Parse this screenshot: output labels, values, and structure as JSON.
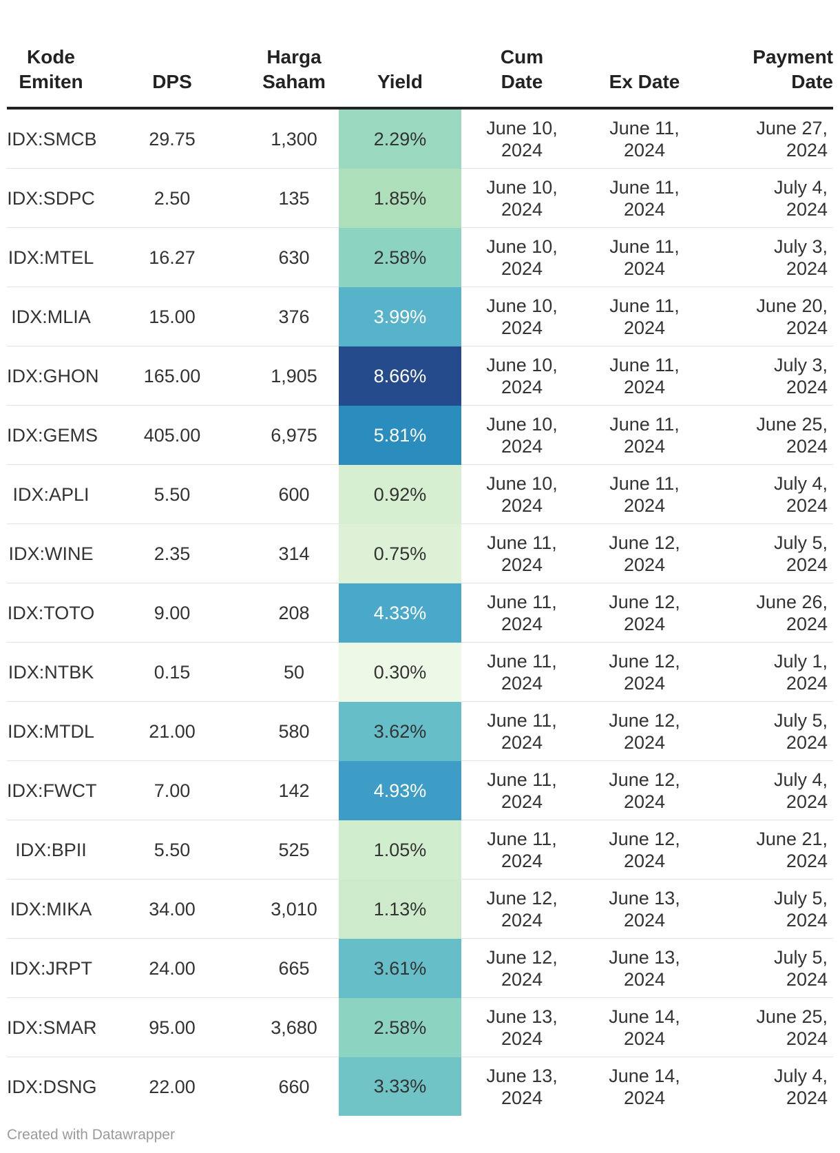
{
  "chart_data": {
    "type": "table",
    "columns": [
      "Kode\nEmiten",
      "DPS",
      "Harga\nSaham",
      "Yield",
      "Cum\nDate",
      "Ex Date",
      "Payment\nDate"
    ],
    "rows": [
      {
        "code": "IDX:SMCB",
        "dps": "29.75",
        "price": "1,300",
        "yield": "2.29%",
        "yield_value": 2.29,
        "cum": "June 10,\n2024",
        "ex": "June 11,\n2024",
        "pay": "June 27,\n2024"
      },
      {
        "code": "IDX:SDPC",
        "dps": "2.50",
        "price": "135",
        "yield": "1.85%",
        "yield_value": 1.85,
        "cum": "June 10,\n2024",
        "ex": "June 11,\n2024",
        "pay": "July 4,\n2024"
      },
      {
        "code": "IDX:MTEL",
        "dps": "16.27",
        "price": "630",
        "yield": "2.58%",
        "yield_value": 2.58,
        "cum": "June 10,\n2024",
        "ex": "June 11,\n2024",
        "pay": "July 3,\n2024"
      },
      {
        "code": "IDX:MLIA",
        "dps": "15.00",
        "price": "376",
        "yield": "3.99%",
        "yield_value": 3.99,
        "cum": "June 10,\n2024",
        "ex": "June 11,\n2024",
        "pay": "June 20,\n2024"
      },
      {
        "code": "IDX:GHON",
        "dps": "165.00",
        "price": "1,905",
        "yield": "8.66%",
        "yield_value": 8.66,
        "cum": "June 10,\n2024",
        "ex": "June 11,\n2024",
        "pay": "July 3,\n2024"
      },
      {
        "code": "IDX:GEMS",
        "dps": "405.00",
        "price": "6,975",
        "yield": "5.81%",
        "yield_value": 5.81,
        "cum": "June 10,\n2024",
        "ex": "June 11,\n2024",
        "pay": "June 25,\n2024"
      },
      {
        "code": "IDX:APLI",
        "dps": "5.50",
        "price": "600",
        "yield": "0.92%",
        "yield_value": 0.92,
        "cum": "June 10,\n2024",
        "ex": "June 11,\n2024",
        "pay": "July 4,\n2024"
      },
      {
        "code": "IDX:WINE",
        "dps": "2.35",
        "price": "314",
        "yield": "0.75%",
        "yield_value": 0.75,
        "cum": "June 11,\n2024",
        "ex": "June 12,\n2024",
        "pay": "July 5,\n2024"
      },
      {
        "code": "IDX:TOTO",
        "dps": "9.00",
        "price": "208",
        "yield": "4.33%",
        "yield_value": 4.33,
        "cum": "June 11,\n2024",
        "ex": "June 12,\n2024",
        "pay": "June 26,\n2024"
      },
      {
        "code": "IDX:NTBK",
        "dps": "0.15",
        "price": "50",
        "yield": "0.30%",
        "yield_value": 0.3,
        "cum": "June 11,\n2024",
        "ex": "June 12,\n2024",
        "pay": "July 1,\n2024"
      },
      {
        "code": "IDX:MTDL",
        "dps": "21.00",
        "price": "580",
        "yield": "3.62%",
        "yield_value": 3.62,
        "cum": "June 11,\n2024",
        "ex": "June 12,\n2024",
        "pay": "July 5,\n2024"
      },
      {
        "code": "IDX:FWCT",
        "dps": "7.00",
        "price": "142",
        "yield": "4.93%",
        "yield_value": 4.93,
        "cum": "June 11,\n2024",
        "ex": "June 12,\n2024",
        "pay": "July 4,\n2024"
      },
      {
        "code": "IDX:BPII",
        "dps": "5.50",
        "price": "525",
        "yield": "1.05%",
        "yield_value": 1.05,
        "cum": "June 11,\n2024",
        "ex": "June 12,\n2024",
        "pay": "June 21,\n2024"
      },
      {
        "code": "IDX:MIKA",
        "dps": "34.00",
        "price": "3,010",
        "yield": "1.13%",
        "yield_value": 1.13,
        "cum": "June 12,\n2024",
        "ex": "June 13,\n2024",
        "pay": "July 5,\n2024"
      },
      {
        "code": "IDX:JRPT",
        "dps": "24.00",
        "price": "665",
        "yield": "3.61%",
        "yield_value": 3.61,
        "cum": "June 12,\n2024",
        "ex": "June 13,\n2024",
        "pay": "July 5,\n2024"
      },
      {
        "code": "IDX:SMAR",
        "dps": "95.00",
        "price": "3,680",
        "yield": "2.58%",
        "yield_value": 2.58,
        "cum": "June 13,\n2024",
        "ex": "June 14,\n2024",
        "pay": "June 25,\n2024"
      },
      {
        "code": "IDX:DSNG",
        "dps": "22.00",
        "price": "660",
        "yield": "3.33%",
        "yield_value": 3.33,
        "cum": "June 13,\n2024",
        "ex": "June 14,\n2024",
        "pay": "July 4,\n2024"
      }
    ],
    "yield_color_scale": {
      "stops": [
        {
          "value": 0.3,
          "color": "#eef8e6"
        },
        {
          "value": 0.92,
          "color": "#d6efd0"
        },
        {
          "value": 1.85,
          "color": "#addfbb"
        },
        {
          "value": 2.58,
          "color": "#8dd3c1"
        },
        {
          "value": 3.6,
          "color": "#66bfc8"
        },
        {
          "value": 4.33,
          "color": "#4aa9cb"
        },
        {
          "value": 5.81,
          "color": "#2b8cbe"
        },
        {
          "value": 8.66,
          "color": "#254b8c"
        }
      ],
      "light_text_color": "#ffffff",
      "dark_text_color": "#333333"
    }
  },
  "footer": "Created with Datawrapper"
}
